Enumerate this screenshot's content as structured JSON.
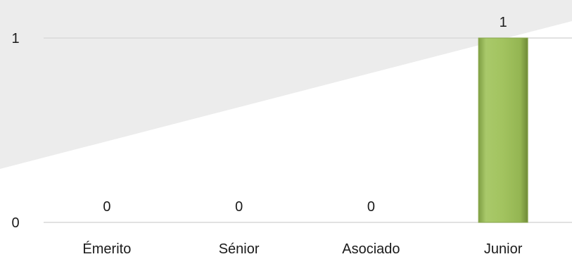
{
  "chart_data": {
    "type": "bar",
    "title": "",
    "xlabel": "",
    "ylabel": "",
    "categories": [
      "Émerito",
      "Sénior",
      "Asociado",
      "Junior"
    ],
    "values": [
      0,
      0,
      0,
      1
    ],
    "data_labels": [
      "0",
      "0",
      "0",
      "1"
    ],
    "ylim": [
      0,
      1
    ],
    "yticks": [
      0,
      1
    ],
    "ytick_labels": [
      "0",
      "1"
    ],
    "grid": true,
    "legend": "none",
    "colors": {
      "bar_fill": "#9bbb59",
      "bar_highlight": "#b9d77a",
      "bar_shadow": "#6f8a37",
      "background_band": "#ececec",
      "gridline": "#d9d9d9"
    }
  }
}
